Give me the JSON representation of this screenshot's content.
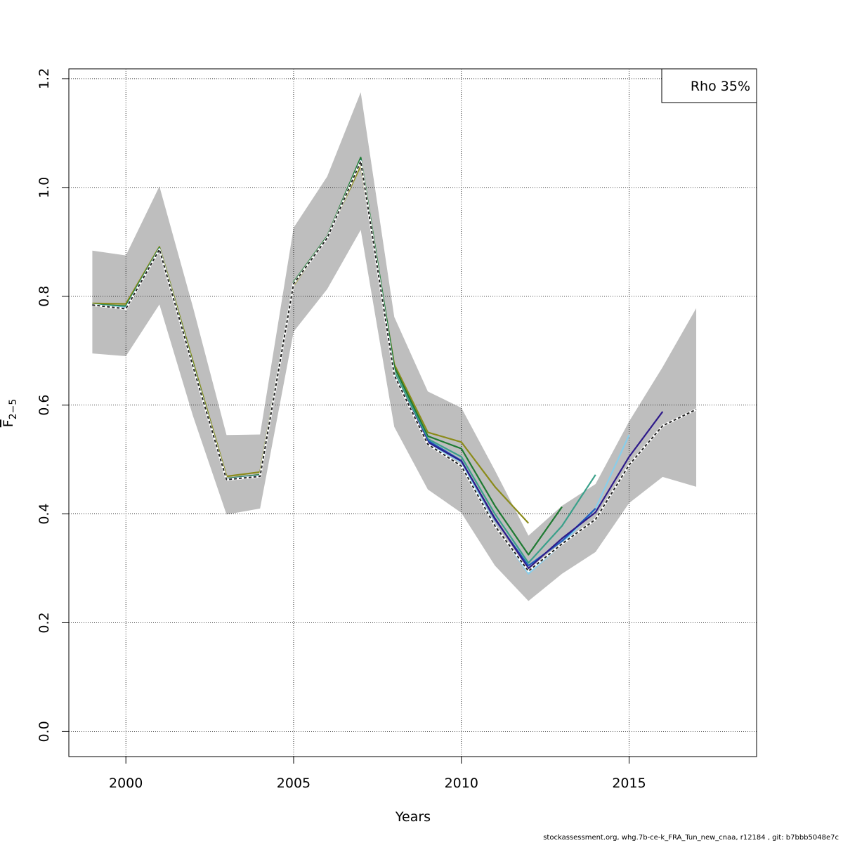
{
  "chart_data": {
    "type": "line",
    "title": "",
    "xlabel": "Years",
    "ylabel_main": "F",
    "ylabel_sub": "2−5",
    "xlim": [
      1998.3,
      2018.8
    ],
    "ylim": [
      -0.046,
      1.218
    ],
    "x_ticks": [
      2000,
      2005,
      2010,
      2015
    ],
    "x_tick_labels": [
      "2000",
      "2005",
      "2010",
      "2015"
    ],
    "y_ticks": [
      0.0,
      0.2,
      0.4,
      0.6,
      0.8,
      1.0,
      1.2
    ],
    "y_tick_labels": [
      "0.0",
      "0.2",
      "0.4",
      "0.6",
      "0.8",
      "1.0",
      "1.2"
    ],
    "grid": true,
    "legend_placement": "top-right",
    "legend_text": "Rho 35%",
    "band": {
      "color": "#bebebe",
      "x": [
        1999,
        2000,
        2001,
        2002,
        2003,
        2004,
        2005,
        2006,
        2007,
        2008,
        2009,
        2010,
        2011,
        2012,
        2013,
        2014,
        2015,
        2016,
        2017
      ],
      "upper": [
        0.884,
        0.875,
        1.002,
        0.78,
        0.545,
        0.546,
        0.926,
        1.02,
        1.175,
        0.762,
        0.625,
        0.595,
        0.48,
        0.36,
        0.415,
        0.455,
        0.57,
        0.67,
        0.778
      ],
      "lower": [
        0.695,
        0.69,
        0.785,
        0.58,
        0.399,
        0.41,
        0.735,
        0.813,
        0.922,
        0.56,
        0.445,
        0.402,
        0.305,
        0.24,
        0.29,
        0.33,
        0.42,
        0.468,
        0.45
      ]
    },
    "series": [
      {
        "color": "#8b8b1a",
        "x": [
          1999,
          2000,
          2001,
          2002,
          2003,
          2004,
          2005,
          2006,
          2007,
          2008,
          2009,
          2010,
          2011,
          2012
        ],
        "values": [
          0.787,
          0.786,
          0.891,
          0.68,
          0.469,
          0.477,
          0.82,
          0.909,
          1.04,
          0.675,
          0.55,
          0.532,
          0.45,
          0.383
        ]
      },
      {
        "color": "#1e7a32",
        "x": [
          1999,
          2000,
          2001,
          2002,
          2003,
          2004,
          2005,
          2006,
          2007,
          2008,
          2009,
          2010,
          2011,
          2012,
          2013
        ],
        "values": [
          0.785,
          0.782,
          0.889,
          0.675,
          0.465,
          0.472,
          0.826,
          0.91,
          1.055,
          0.67,
          0.543,
          0.52,
          0.415,
          0.325,
          0.413
        ]
      },
      {
        "color": "#3aa08a",
        "x": [
          1999,
          2000,
          2001,
          2002,
          2003,
          2004,
          2005,
          2006,
          2007,
          2008,
          2009,
          2010,
          2011,
          2012,
          2013,
          2014
        ],
        "values": [
          0.785,
          0.78,
          0.888,
          0.673,
          0.464,
          0.471,
          0.824,
          0.908,
          1.05,
          0.662,
          0.538,
          0.505,
          0.4,
          0.31,
          0.378,
          0.472
        ]
      },
      {
        "color": "#87ceeb",
        "x": [
          1999,
          2000,
          2001,
          2002,
          2003,
          2004,
          2005,
          2006,
          2007,
          2008,
          2009,
          2010,
          2011,
          2012,
          2013,
          2014,
          2015
        ],
        "values": [
          0.784,
          0.779,
          0.887,
          0.672,
          0.463,
          0.47,
          0.823,
          0.907,
          1.048,
          0.655,
          0.53,
          0.495,
          0.38,
          0.29,
          0.345,
          0.41,
          0.545
        ]
      },
      {
        "color": "#1f5fbf",
        "x": [
          1999,
          2000,
          2001,
          2002,
          2003,
          2004,
          2005,
          2006,
          2007,
          2008,
          2009,
          2010,
          2011,
          2012,
          2013,
          2014
        ],
        "values": [
          0.784,
          0.778,
          0.887,
          0.672,
          0.464,
          0.47,
          0.823,
          0.907,
          1.049,
          0.653,
          0.535,
          0.498,
          0.39,
          0.305,
          0.35,
          0.41
        ]
      },
      {
        "color": "#2e1a8a",
        "x": [
          1999,
          2000,
          2001,
          2002,
          2003,
          2004,
          2005,
          2006,
          2007,
          2008,
          2009,
          2010,
          2011,
          2012,
          2013,
          2014,
          2015,
          2016
        ],
        "values": [
          0.784,
          0.777,
          0.886,
          0.671,
          0.463,
          0.47,
          0.823,
          0.907,
          1.048,
          0.656,
          0.532,
          0.497,
          0.392,
          0.3,
          0.355,
          0.403,
          0.505,
          0.588
        ]
      },
      {
        "color": "#222222",
        "dashed": true,
        "x": [
          1999,
          2000,
          2001,
          2002,
          2003,
          2004,
          2005,
          2006,
          2007,
          2008,
          2009,
          2010,
          2011,
          2012,
          2013,
          2014,
          2015,
          2016,
          2017
        ],
        "values": [
          0.784,
          0.777,
          0.886,
          0.671,
          0.463,
          0.469,
          0.823,
          0.907,
          1.048,
          0.655,
          0.528,
          0.488,
          0.378,
          0.295,
          0.345,
          0.39,
          0.49,
          0.562,
          0.592
        ]
      }
    ]
  },
  "footer": "stockassessment.org, whg.7b-ce-k_FRA_Tun_new_cnaa, r12184 , git: b7bbb5048e7c"
}
